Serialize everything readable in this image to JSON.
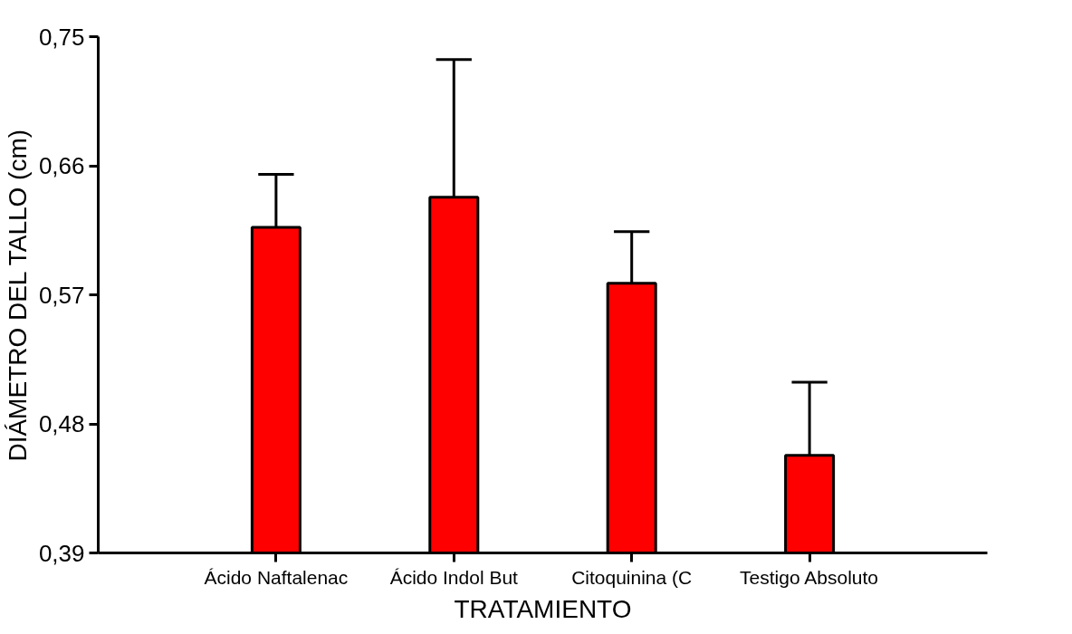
{
  "chart_data": {
    "type": "bar",
    "xlabel": "TRATAMIENTO",
    "ylabel": "DIÁMETRO DEL TALLO (cm)",
    "categories": [
      "Ácido Naftalenac",
      "Ácido Indol But",
      "Citoquinina (C",
      "Testigo Absoluto"
    ],
    "values": [
      0.617,
      0.638,
      0.578,
      0.458
    ],
    "errors": [
      [
        0.617,
        0.654
      ],
      [
        0.638,
        0.734
      ],
      [
        0.578,
        0.614
      ],
      [
        0.458,
        0.509
      ]
    ],
    "color": "#ff0000",
    "ylim": [
      0.39,
      0.75
    ],
    "yticks": [
      {
        "value": 0.39,
        "label": "0,39"
      },
      {
        "value": 0.48,
        "label": "0,48"
      },
      {
        "value": 0.57,
        "label": "0,57"
      },
      {
        "value": 0.66,
        "label": "0,66"
      },
      {
        "value": 0.75,
        "label": "0,75"
      }
    ],
    "grid": false
  }
}
